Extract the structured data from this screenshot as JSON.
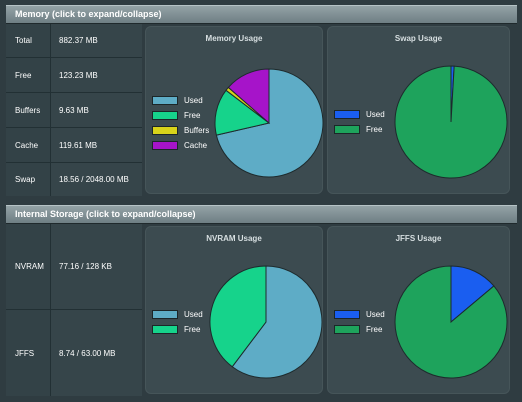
{
  "memory": {
    "header": "Memory (click to expand/collapse)",
    "stats": [
      {
        "label": "Total",
        "value": "882.37 MB"
      },
      {
        "label": "Free",
        "value": "123.23 MB"
      },
      {
        "label": "Buffers",
        "value": "9.63 MB"
      },
      {
        "label": "Cache",
        "value": "119.61 MB"
      },
      {
        "label": "Swap",
        "value": "18.56 / 2048.00 MB"
      }
    ],
    "memory_chart": {
      "title": "Memory Usage",
      "legend": [
        "Used",
        "Free",
        "Buffers",
        "Cache"
      ],
      "colors": [
        "#5eacc6",
        "#16d38b",
        "#d8d31a",
        "#a614c9"
      ],
      "values": [
        629.9,
        123.23,
        9.63,
        119.61
      ]
    },
    "swap_chart": {
      "title": "Swap Usage",
      "legend": [
        "Used",
        "Free"
      ],
      "colors": [
        "#1a5ef0",
        "#1ea35c"
      ],
      "values": [
        18.56,
        2029.44
      ]
    }
  },
  "storage": {
    "header": "Internal Storage (click to expand/collapse)",
    "stats": [
      {
        "label": "NVRAM",
        "value": "77.16 / 128 KB"
      },
      {
        "label": "JFFS",
        "value": "8.74 / 63.00 MB"
      }
    ],
    "nvram_chart": {
      "title": "NVRAM Usage",
      "legend": [
        "Used",
        "Free"
      ],
      "colors": [
        "#5eacc6",
        "#16d38b"
      ],
      "values": [
        77.16,
        50.84
      ]
    },
    "jffs_chart": {
      "title": "JFFS Usage",
      "legend": [
        "Used",
        "Free"
      ],
      "colors": [
        "#1a5ef0",
        "#1ea35c"
      ],
      "values": [
        8.74,
        54.26
      ]
    }
  }
}
